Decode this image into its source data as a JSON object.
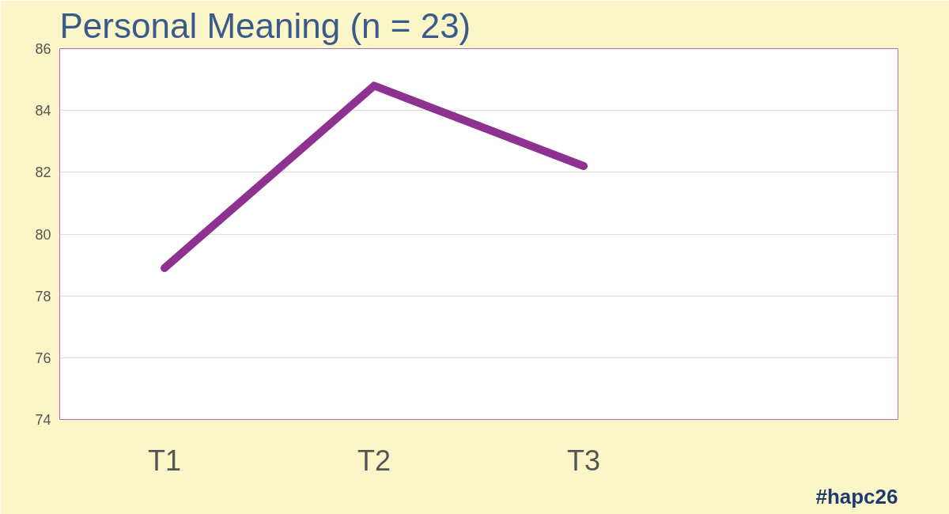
{
  "chart_data": {
    "type": "line",
    "title": "Personal Meaning (n = 23)",
    "categories": [
      "T1",
      "T2",
      "T3",
      null
    ],
    "series": [
      {
        "color": "#8e3292",
        "values": [
          78.9,
          84.8,
          82.2,
          null
        ]
      }
    ],
    "ylim": [
      74,
      86
    ],
    "yticks": [
      74,
      76,
      78,
      80,
      82,
      84,
      86
    ],
    "grid": "y",
    "marker": "none",
    "line_style": "solid",
    "annotations": [
      "#hapc26"
    ]
  }
}
